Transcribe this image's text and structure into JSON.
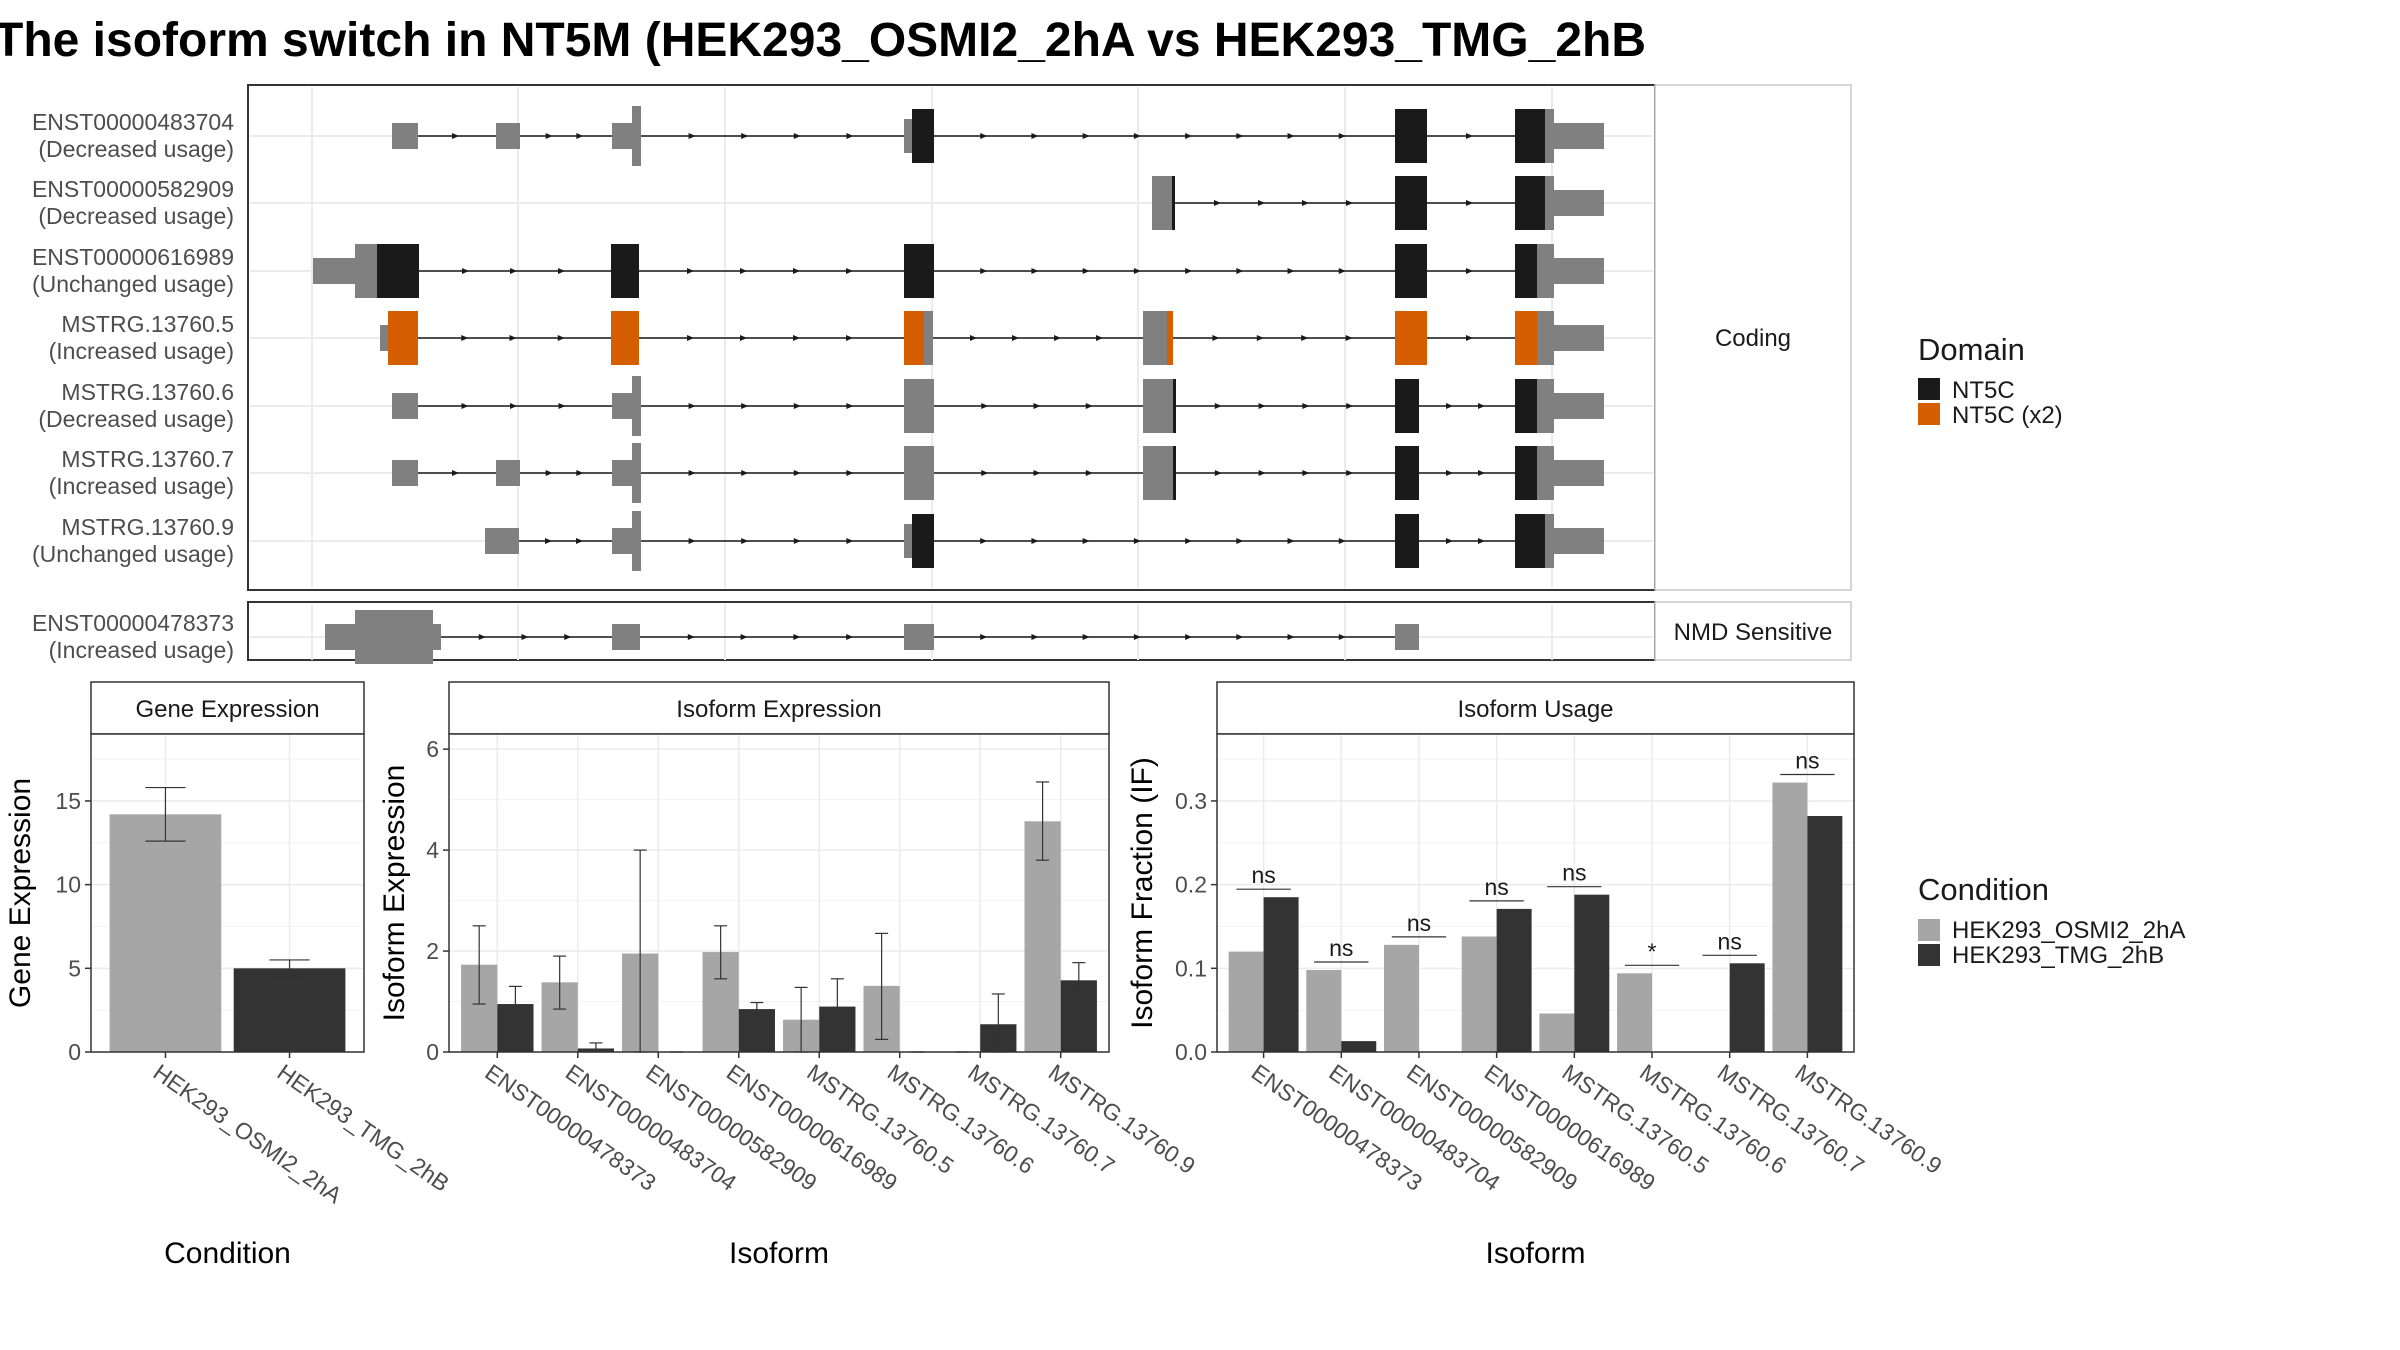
{
  "title": "The isoform switch in NT5M (HEK293_OSMI2_2hA vs HEK293_TMG_2hB",
  "colors": {
    "nt5c": "#1a1a1a",
    "nt5c_x2": "#d55e00",
    "noncoding_exon": "#808080",
    "cond_a": "#a6a6a6",
    "cond_b": "#333333"
  },
  "structure": {
    "coding_strip": "Coding",
    "nmd_strip": "NMD Sensitive",
    "transcripts": [
      {
        "id": "ENST00000483704",
        "usage": "(Decreased usage)"
      },
      {
        "id": "ENST00000582909",
        "usage": "(Decreased usage)"
      },
      {
        "id": "ENST00000616989",
        "usage": "(Unchanged usage)"
      },
      {
        "id": "MSTRG.13760.5",
        "usage": "(Increased usage)"
      },
      {
        "id": "MSTRG.13760.6",
        "usage": "(Decreased usage)"
      },
      {
        "id": "MSTRG.13760.7",
        "usage": "(Increased usage)"
      },
      {
        "id": "MSTRG.13760.9",
        "usage": "(Unchanged usage)"
      },
      {
        "id": "ENST00000478373",
        "usage": "(Increased usage)"
      }
    ]
  },
  "legend": {
    "domain_title": "Domain",
    "domain_items": [
      "NT5C",
      "NT5C (x2)"
    ],
    "condition_title": "Condition",
    "condition_items": [
      "HEK293_OSMI2_2hA",
      "HEK293_TMG_2hB"
    ]
  },
  "chart_data": [
    {
      "type": "bar",
      "title": "Gene Expression",
      "xlabel": "Condition",
      "ylabel": "Gene Expression",
      "ylim": [
        0,
        19
      ],
      "yticks": [
        0,
        5,
        10,
        15
      ],
      "categories": [
        "HEK293_OSMI2_2hA",
        "HEK293_TMG_2hB"
      ],
      "values": [
        14.2,
        5.0
      ],
      "errors": [
        [
          12.6,
          15.8
        ],
        [
          4.5,
          5.5
        ]
      ]
    },
    {
      "type": "bar",
      "title": "Isoform Expression",
      "xlabel": "Isoform",
      "ylabel": "Isoform Expression",
      "ylim": [
        0,
        6.3
      ],
      "yticks": [
        0,
        2,
        4,
        6
      ],
      "categories": [
        "ENST00000478373",
        "ENST00000483704",
        "ENST00000582909",
        "ENST00000616989",
        "MSTRG.13760.5",
        "MSTRG.13760.6",
        "MSTRG.13760.7",
        "MSTRG.13760.9"
      ],
      "series": [
        {
          "name": "HEK293_OSMI2_2hA",
          "values": [
            1.73,
            1.38,
            1.95,
            1.98,
            0.64,
            1.31,
            0.0,
            4.57
          ],
          "errors": [
            [
              0.95,
              2.5
            ],
            [
              0.85,
              1.9
            ],
            [
              0.0,
              4.0
            ],
            [
              1.45,
              2.5
            ],
            [
              0.0,
              1.28
            ],
            [
              0.25,
              2.35
            ],
            [
              0.0,
              0.0
            ],
            [
              3.8,
              5.35
            ]
          ]
        },
        {
          "name": "HEK293_TMG_2hB",
          "values": [
            0.95,
            0.07,
            0.0,
            0.85,
            0.9,
            0.0,
            0.55,
            1.42
          ],
          "errors": [
            [
              0.6,
              1.3
            ],
            [
              0.0,
              0.18
            ],
            [
              0.0,
              0.0
            ],
            [
              0.72,
              0.98
            ],
            [
              0.35,
              1.45
            ],
            [
              0.0,
              0.0
            ],
            [
              0.0,
              1.15
            ],
            [
              1.07,
              1.77
            ]
          ]
        }
      ]
    },
    {
      "type": "bar",
      "title": "Isoform Usage",
      "xlabel": "Isoform",
      "ylabel": "Isoform Fraction (IF)",
      "ylim": [
        0,
        0.38
      ],
      "yticks": [
        0.0,
        0.1,
        0.2,
        0.3
      ],
      "ytick_labels": [
        "0.0",
        "0.1",
        "0.2",
        "0.3"
      ],
      "categories": [
        "ENST00000478373",
        "ENST00000483704",
        "ENST00000582909",
        "ENST00000616989",
        "MSTRG.13760.5",
        "MSTRG.13760.6",
        "MSTRG.13760.7",
        "MSTRG.13760.9"
      ],
      "series": [
        {
          "name": "HEK293_OSMI2_2hA",
          "values": [
            0.12,
            0.098,
            0.128,
            0.138,
            0.046,
            0.094,
            0.0,
            0.322
          ]
        },
        {
          "name": "HEK293_TMG_2hB",
          "values": [
            0.185,
            0.013,
            0.0,
            0.171,
            0.188,
            0.0,
            0.106,
            0.282
          ]
        }
      ],
      "significance": [
        "ns",
        "ns",
        "ns",
        "ns",
        "ns",
        "*",
        "ns",
        "ns"
      ]
    }
  ]
}
